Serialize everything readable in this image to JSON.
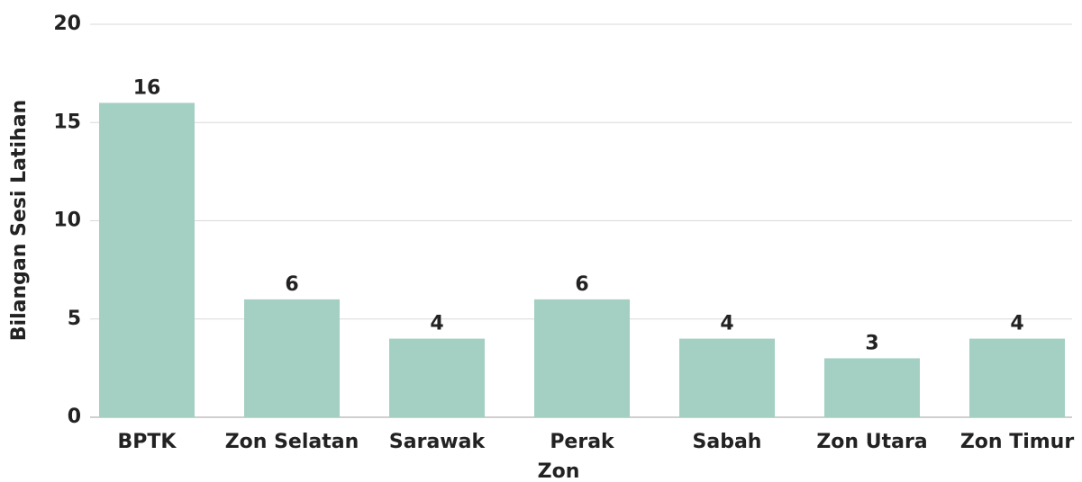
{
  "chart_data": {
    "type": "bar",
    "categories": [
      "BPTK",
      "Zon Selatan",
      "Sarawak",
      "Perak",
      "Sabah",
      "Zon Utara",
      "Zon Timur"
    ],
    "values": [
      16,
      6,
      4,
      6,
      4,
      3,
      4
    ],
    "color": "#a3d0c3",
    "xlabel": "Zon",
    "ylabel": "Bilangan Sesi Latihan",
    "ylim": [
      0,
      20
    ],
    "yticks": [
      0,
      5,
      10,
      15,
      20
    ],
    "grid": true
  }
}
